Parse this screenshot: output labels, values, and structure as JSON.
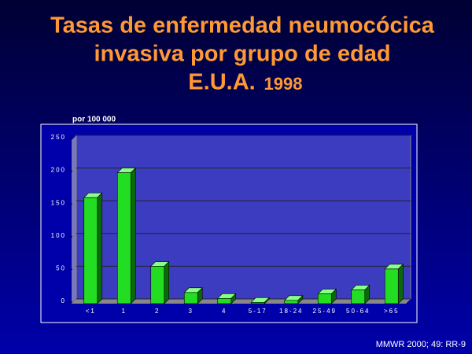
{
  "chart_data": {
    "type": "bar",
    "title_lines": [
      "Tasas de enfermedad neumocócica",
      "invasiva por grupo de edad"
    ],
    "country": "E.U.A.",
    "year": "1998",
    "y_label": "por 100 000",
    "source": "MMWR 2000; 49: RR-9",
    "categories": [
      "<1",
      "1",
      "2",
      "3",
      "4",
      "5-17",
      "18-24",
      "25-49",
      "50-64",
      ">65"
    ],
    "values": [
      162,
      200,
      57,
      17,
      8,
      2,
      5,
      15,
      21,
      53
    ],
    "color": "#22dd22",
    "ylim": [
      0,
      250
    ],
    "yticks": [
      0,
      50,
      100,
      150,
      200,
      250
    ],
    "grid": true
  }
}
